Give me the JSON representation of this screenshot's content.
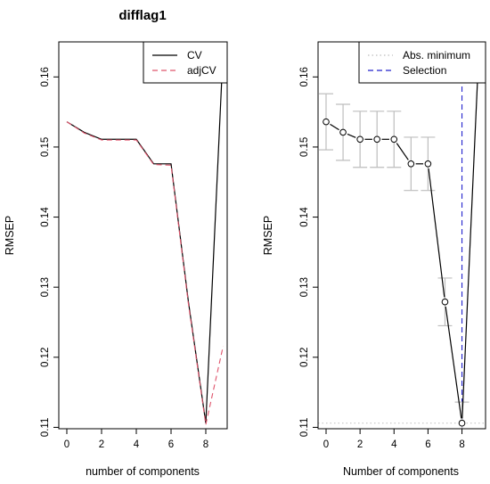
{
  "figure_title": "difflag1",
  "chart_data": [
    {
      "type": "line",
      "title": "difflag1",
      "xlabel": "number of components",
      "ylabel": "RMSEP",
      "xlim": [
        0,
        9
      ],
      "ylim": [
        0.11,
        0.165
      ],
      "x_ticks": [
        "0",
        "2",
        "4",
        "6",
        "8"
      ],
      "y_ticks": [
        "0.11",
        "0.12",
        "0.13",
        "0.14",
        "0.15",
        "0.16"
      ],
      "legend_position": "top-right",
      "x": [
        0,
        1,
        2,
        3,
        4,
        5,
        6,
        7,
        8,
        9
      ],
      "series": [
        {
          "name": "CV",
          "color": "#000000",
          "dash": "solid",
          "values": [
            0.1536,
            0.1521,
            0.1511,
            0.1511,
            0.1511,
            0.1476,
            0.1476,
            0.1279,
            0.1106,
            0.164
          ]
        },
        {
          "name": "adjCV",
          "color": "#df536b",
          "dash": "dashed",
          "values": [
            0.1536,
            0.152,
            0.151,
            0.151,
            0.151,
            0.1475,
            0.1474,
            0.1276,
            0.1104,
            0.1216
          ]
        }
      ]
    },
    {
      "type": "line",
      "title": "",
      "xlabel": "Number of components",
      "ylabel": "RMSEP",
      "xlim": [
        0,
        9
      ],
      "ylim": [
        0.11,
        0.165
      ],
      "x_ticks": [
        "0",
        "2",
        "4",
        "6",
        "8"
      ],
      "y_ticks": [
        "0.11",
        "0.12",
        "0.13",
        "0.14",
        "0.15",
        "0.16"
      ],
      "legend_position": "top-right",
      "legend": [
        {
          "name": "Abs. minimum",
          "color": "#bdbdbd",
          "dash": "dotted"
        },
        {
          "name": "Selection",
          "color": "#2222cc",
          "dash": "dashed"
        }
      ],
      "x": [
        0,
        1,
        2,
        3,
        4,
        5,
        6,
        7,
        8,
        9
      ],
      "values": [
        0.1536,
        0.1521,
        0.1511,
        0.1511,
        0.1511,
        0.1476,
        0.1476,
        0.1279,
        0.1106,
        0.164
      ],
      "error_half_width": [
        0.004,
        0.004,
        0.004,
        0.004,
        0.004,
        0.0038,
        0.0038,
        0.0034,
        0.003,
        0.003
      ],
      "abs_minimum": 0.1106,
      "selection": 8,
      "error_bar_color": "#bdbdbd"
    }
  ]
}
